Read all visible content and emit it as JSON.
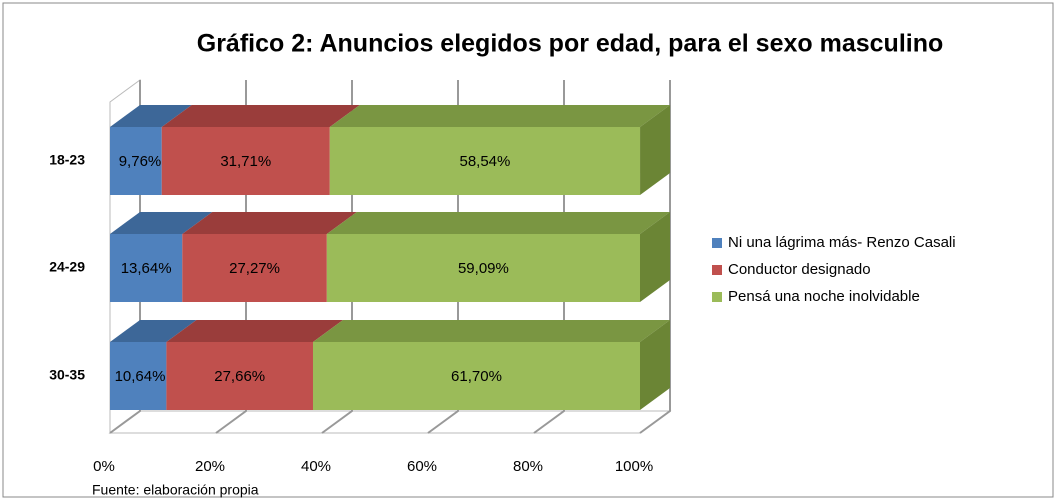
{
  "chart_data": {
    "type": "bar3d_stacked_horizontal",
    "title": "Gráfico 2: Anuncios elegidos por edad, para el sexo masculino",
    "categories": [
      "18-23",
      "24-29",
      "30-35"
    ],
    "series": [
      {
        "name": "Ni una lágrima más- Renzo Casali",
        "color": "#4f81bd",
        "top_color": "#3d6798",
        "values": [
          9.76,
          13.64,
          10.64
        ],
        "value_labels": [
          "9,76%",
          "13,64%",
          "10,64%"
        ]
      },
      {
        "name": "Conductor designado",
        "color": "#c0504d",
        "top_color": "#9a3d3b",
        "values": [
          31.71,
          27.27,
          27.66
        ],
        "value_labels": [
          "31,71%",
          "27,27%",
          "27,66%"
        ]
      },
      {
        "name": "Pensá una noche inolvidable",
        "color": "#9bbb59",
        "top_color": "#7a9642",
        "side_color": "#6b8535",
        "values": [
          58.54,
          59.09,
          61.7
        ],
        "value_labels": [
          "58,54%",
          "59,09%",
          "61,70%"
        ]
      }
    ],
    "xlim": [
      0,
      100
    ],
    "xticks": [
      {
        "value": 0,
        "label": "0%"
      },
      {
        "value": 20,
        "label": "20%"
      },
      {
        "value": 40,
        "label": "40%"
      },
      {
        "value": 60,
        "label": "60%"
      },
      {
        "value": 80,
        "label": "80%"
      },
      {
        "value": 100,
        "label": "100%"
      }
    ],
    "grid": true,
    "legend": "right",
    "source": "Fuente: elaboración propia"
  }
}
